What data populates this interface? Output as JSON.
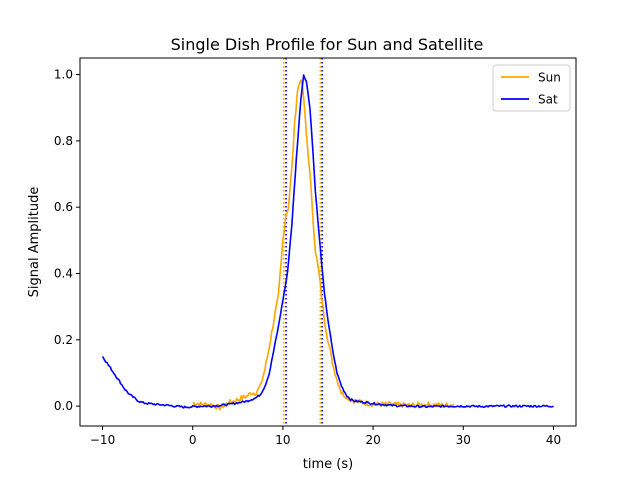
{
  "chart_data": {
    "type": "line",
    "title": "Single Dish Profile for Sun and Satellite",
    "xlabel": "time (s)",
    "ylabel": "Signal Amplitude",
    "xlim": [
      -12.5,
      42.5
    ],
    "ylim": [
      -0.06,
      1.05
    ],
    "xticks": [
      -10,
      0,
      10,
      20,
      30,
      40
    ],
    "yticks": [
      0.0,
      0.2,
      0.4,
      0.6,
      0.8,
      1.0
    ],
    "xtick_labels": [
      "−10",
      "0",
      "10",
      "20",
      "30",
      "40"
    ],
    "ytick_labels": [
      "0.0",
      "0.2",
      "0.4",
      "0.6",
      "0.8",
      "1.0"
    ],
    "grid": false,
    "legend_position": "top-right",
    "series": [
      {
        "name": "Sun",
        "color": "#FFA500",
        "x": [
          0,
          1,
          2,
          3,
          4,
          5,
          6,
          6.5,
          7,
          7.5,
          8,
          8.5,
          9,
          9.5,
          10,
          10.3,
          10.6,
          11,
          11.3,
          11.6,
          12,
          12.3,
          12.6,
          13,
          13.3,
          13.6,
          14,
          14.3,
          14.6,
          15,
          15.5,
          16,
          16.5,
          17,
          17.5,
          18,
          19,
          20,
          21,
          22,
          24,
          26,
          28,
          29
        ],
        "y": [
          0.01,
          0.005,
          0.005,
          -0.005,
          0.01,
          0.02,
          0.03,
          0.04,
          0.04,
          0.06,
          0.11,
          0.18,
          0.26,
          0.33,
          0.5,
          0.57,
          0.6,
          0.72,
          0.85,
          0.95,
          0.99,
          0.93,
          0.82,
          0.7,
          0.58,
          0.47,
          0.4,
          0.33,
          0.26,
          0.2,
          0.13,
          0.08,
          0.04,
          0.03,
          0.02,
          0.015,
          0.01,
          0.005,
          0.005,
          0.005,
          0.002,
          0.005,
          0.002,
          0.005
        ]
      },
      {
        "name": "Sat",
        "color": "#0000FF",
        "x": [
          -10,
          -9.5,
          -9,
          -8.5,
          -8,
          -7.5,
          -7,
          -6.5,
          -6,
          -5.5,
          -5,
          -4,
          -3,
          -2,
          -1,
          0,
          1,
          2,
          3,
          4,
          5,
          6,
          7,
          7.5,
          8,
          8.5,
          9,
          9.5,
          10,
          10.5,
          11,
          11.5,
          12,
          12.3,
          12.6,
          13,
          13.3,
          13.6,
          14,
          14.3,
          14.6,
          15,
          15.5,
          16,
          16.5,
          17,
          17.5,
          18,
          19,
          20,
          21,
          22,
          24,
          26,
          28,
          30,
          32,
          34,
          36,
          38,
          40
        ],
        "y": [
          0.15,
          0.13,
          0.11,
          0.09,
          0.07,
          0.05,
          0.035,
          0.025,
          0.015,
          0.01,
          0.008,
          0.005,
          0.003,
          0.0,
          -0.003,
          -0.002,
          0.0,
          0.0,
          0.002,
          0.005,
          0.01,
          0.015,
          0.025,
          0.035,
          0.06,
          0.1,
          0.17,
          0.24,
          0.32,
          0.4,
          0.55,
          0.75,
          0.93,
          1.0,
          0.98,
          0.9,
          0.78,
          0.65,
          0.52,
          0.43,
          0.34,
          0.26,
          0.17,
          0.1,
          0.06,
          0.035,
          0.02,
          0.015,
          0.012,
          0.008,
          0.005,
          0.002,
          0.0,
          -0.002,
          0.0,
          0.0,
          -0.001,
          0.0,
          0.0,
          0.0,
          0.0
        ]
      }
    ],
    "vlines": [
      {
        "x": 10.1,
        "color": "#FFA500",
        "style": "dotted"
      },
      {
        "x": 10.35,
        "color": "#0000FF",
        "style": "dotted"
      },
      {
        "x": 14.15,
        "color": "#FFA500",
        "style": "dotted"
      },
      {
        "x": 14.35,
        "color": "#0000FF",
        "style": "dotted"
      }
    ]
  }
}
